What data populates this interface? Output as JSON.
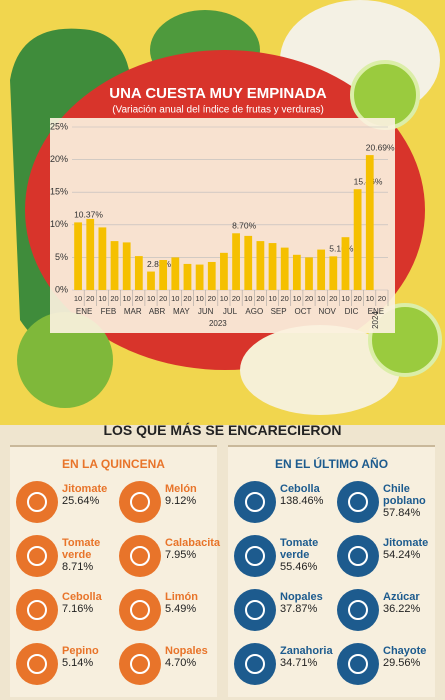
{
  "chart_data": {
    "type": "bar",
    "title": "UNA CUESTA MUY EMPINADA",
    "subtitle": "(Variación anual del índice de frutas y verduras)",
    "categories": [
      "10",
      "20",
      "10",
      "20",
      "10",
      "20",
      "10",
      "20",
      "10",
      "20",
      "10",
      "20",
      "10",
      "20",
      "10",
      "20",
      "10",
      "20",
      "10",
      "20",
      "10",
      "20",
      "10",
      "20",
      "10",
      "20"
    ],
    "months": [
      "ENE",
      "FEB",
      "MAR",
      "ABR",
      "MAY",
      "JUN",
      "JUL",
      "AGO",
      "SEP",
      "OCT",
      "NOV",
      "DIC",
      "ENE"
    ],
    "years": [
      "2023",
      "2024"
    ],
    "values": [
      10.37,
      10.9,
      9.6,
      7.5,
      7.3,
      5.2,
      2.83,
      4.6,
      5.0,
      4.0,
      3.9,
      4.3,
      5.7,
      8.7,
      8.3,
      7.5,
      7.2,
      6.5,
      5.4,
      5.0,
      6.2,
      5.16,
      8.1,
      15.46,
      20.69,
      null
    ],
    "value_labels": [
      "10.37%",
      null,
      null,
      null,
      null,
      null,
      "2.83%",
      null,
      null,
      null,
      null,
      null,
      null,
      "8.70%",
      null,
      null,
      null,
      null,
      null,
      null,
      null,
      "5.16%",
      null,
      "15.46%",
      "20.69%",
      null
    ],
    "color": "#f5c000",
    "ylim": [
      0,
      25
    ],
    "yticks": [
      {
        "value": 0,
        "label": "0%"
      },
      {
        "value": 5,
        "label": "5%"
      },
      {
        "value": 10,
        "label": "10%"
      },
      {
        "value": 15,
        "label": "15%"
      },
      {
        "value": 20,
        "label": "20%"
      },
      {
        "value": 25,
        "label": "25%"
      }
    ],
    "grid": true
  },
  "headline": "LOS QUE MÁS SE ENCARECIERON",
  "panels": [
    {
      "title": "EN LA QUINCENA",
      "color": "#e8742a",
      "items": [
        {
          "name": "Jitomate",
          "value": "25.64%"
        },
        {
          "name": "Melón",
          "value": "9.12%"
        },
        {
          "name": "Tomate verde",
          "value": "8.71%"
        },
        {
          "name": "Calabacita",
          "value": "7.95%"
        },
        {
          "name": "Cebolla",
          "value": "7.16%"
        },
        {
          "name": "Limón",
          "value": "5.49%"
        },
        {
          "name": "Pepino",
          "value": "5.14%"
        },
        {
          "name": "Nopales",
          "value": "4.70%"
        }
      ]
    },
    {
      "title": "EN EL ÚLTIMO AÑO",
      "color": "#1d5b8e",
      "items": [
        {
          "name": "Cebolla",
          "value": "138.46%"
        },
        {
          "name": "Chile poblano",
          "value": "57.84%"
        },
        {
          "name": "Tomate verde",
          "value": "55.46%"
        },
        {
          "name": "Jitomate",
          "value": "54.24%"
        },
        {
          "name": "Nopales",
          "value": "37.87%"
        },
        {
          "name": "Azúcar",
          "value": "36.22%"
        },
        {
          "name": "Zanahoria",
          "value": "34.71%"
        },
        {
          "name": "Chayote",
          "value": "29.56%"
        }
      ]
    }
  ]
}
